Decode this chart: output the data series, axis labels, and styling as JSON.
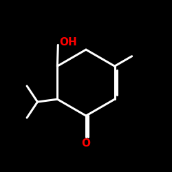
{
  "background_color": "#000000",
  "bond_color": "#ffffff",
  "O_color": "#ff0000",
  "lw": 2.2,
  "figsize": [
    2.5,
    2.5
  ],
  "dpi": 100,
  "xlim": [
    -1.3,
    1.3
  ],
  "ylim": [
    -1.4,
    1.2
  ],
  "OH_label": "OH",
  "O_label": "O",
  "oh_fontsize": 11,
  "o_fontsize": 11
}
